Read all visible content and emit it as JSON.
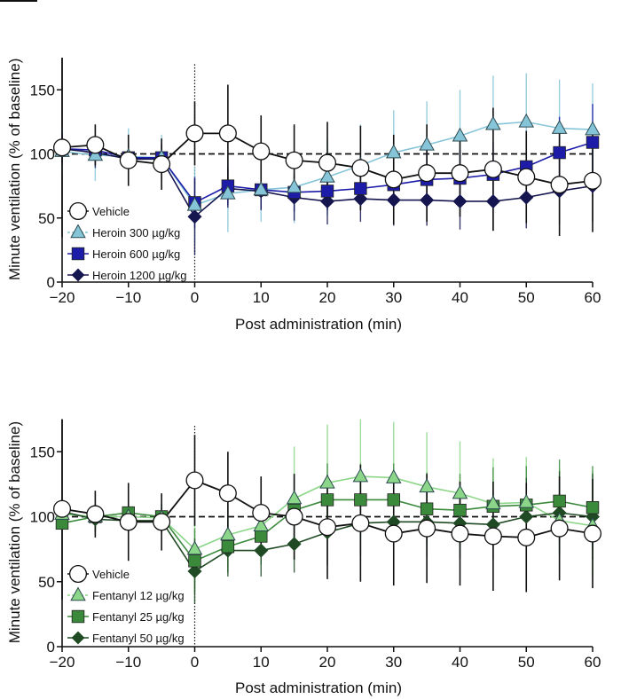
{
  "chart_data": [
    {
      "type": "line",
      "title": "",
      "xlabel": "Post administration (min)",
      "ylabel": "Minute ventilation (% of baseline)",
      "xlim": [
        -20,
        60
      ],
      "ylim": [
        0,
        175
      ],
      "xticks": [
        -20,
        -10,
        0,
        10,
        20,
        30,
        40,
        50,
        60
      ],
      "xtick_labels": [
        "−20",
        "−10",
        "0",
        "10",
        "20",
        "30",
        "40",
        "50",
        "60"
      ],
      "yticks": [
        0,
        50,
        100,
        150
      ],
      "ytick_labels": [
        "0",
        "50",
        "100",
        "150"
      ],
      "reference_line_y": 100,
      "dosing_line_x": 0,
      "grid": false,
      "legend_position": "bottom-left",
      "x": [
        -20,
        -15,
        -10,
        -5,
        0,
        5,
        10,
        15,
        20,
        25,
        30,
        35,
        40,
        45,
        50,
        55,
        60
      ],
      "series": [
        {
          "name": "Vehicle",
          "marker": "circle",
          "color": "#111111",
          "fill": "#ffffff",
          "values": [
            105,
            107,
            95,
            92,
            116,
            116,
            102,
            95,
            93,
            89,
            80,
            85,
            85,
            88,
            82,
            76,
            79
          ],
          "error": [
            70,
            16,
            20,
            20,
            25,
            38,
            28,
            28,
            32,
            33,
            35,
            38,
            34,
            48,
            36,
            40,
            40
          ]
        },
        {
          "name": "Heroin 300 µg/kg",
          "marker": "triangle",
          "color": "#86c5d8",
          "fill": "#86c5d8",
          "values": [
            102,
            99,
            98,
            97,
            60,
            69,
            72,
            74,
            82,
            91,
            101,
            107,
            114,
            123,
            125,
            120,
            119
          ],
          "error": [
            18,
            20,
            22,
            18,
            30,
            30,
            25,
            28,
            30,
            32,
            33,
            34,
            36,
            38,
            38,
            38,
            36
          ]
        },
        {
          "name": "Heroin 600 µg/kg",
          "marker": "square",
          "color": "#1c1ca8",
          "fill": "#1c1ca8",
          "values": [
            104,
            103,
            97,
            97,
            62,
            75,
            72,
            70,
            71,
            73,
            76,
            80,
            81,
            84,
            90,
            101,
            109
          ],
          "error": [
            10,
            10,
            10,
            10,
            20,
            15,
            15,
            15,
            15,
            15,
            20,
            22,
            22,
            25,
            25,
            28,
            30
          ]
        },
        {
          "name": "Heroin 1200 µg/kg",
          "marker": "diamond",
          "color": "#15154f",
          "fill": "#15154f",
          "values": [
            104,
            101,
            96,
            96,
            51,
            73,
            71,
            66,
            63,
            65,
            64,
            64,
            63,
            63,
            66,
            71,
            75
          ],
          "error": [
            12,
            12,
            12,
            12,
            30,
            15,
            15,
            18,
            18,
            18,
            20,
            20,
            22,
            22,
            24,
            26,
            28
          ]
        }
      ]
    },
    {
      "type": "line",
      "title": "",
      "xlabel": "Post administration (min)",
      "ylabel": "Minute ventilation (% of baseline)",
      "xlim": [
        -20,
        60
      ],
      "ylim": [
        0,
        175
      ],
      "xticks": [
        -20,
        -10,
        0,
        10,
        20,
        30,
        40,
        50,
        60
      ],
      "xtick_labels": [
        "−20",
        "−10",
        "0",
        "10",
        "20",
        "30",
        "40",
        "50",
        "60"
      ],
      "yticks": [
        0,
        50,
        100,
        150
      ],
      "ytick_labels": [
        "0",
        "50",
        "100",
        "150"
      ],
      "reference_line_y": 100,
      "dosing_line_x": 0,
      "grid": false,
      "legend_position": "bottom-left",
      "x": [
        -20,
        -15,
        -10,
        -5,
        0,
        5,
        10,
        15,
        20,
        25,
        30,
        35,
        40,
        45,
        50,
        55,
        60
      ],
      "series": [
        {
          "name": "Vehicle",
          "marker": "circle",
          "color": "#111111",
          "fill": "#ffffff",
          "values": [
            106,
            102,
            96,
            96,
            128,
            118,
            103,
            100,
            92,
            95,
            87,
            91,
            87,
            85,
            84,
            91,
            87
          ],
          "error": [
            70,
            18,
            30,
            22,
            35,
            32,
            28,
            33,
            40,
            45,
            40,
            42,
            40,
            42,
            42,
            40,
            42
          ]
        },
        {
          "name": "Fentanyl 12 µg/kg",
          "marker": "triangle",
          "color": "#8cd689",
          "fill": "#8cd689",
          "values": [
            102,
            100,
            100,
            99,
            75,
            86,
            93,
            114,
            126,
            131,
            130,
            123,
            118,
            110,
            111,
            97,
            93
          ],
          "error": [
            10,
            10,
            10,
            10,
            30,
            25,
            30,
            40,
            45,
            45,
            43,
            42,
            40,
            35,
            35,
            40,
            42
          ]
        },
        {
          "name": "Fentanyl 25 µg/kg",
          "marker": "square",
          "color": "#3b8a3c",
          "fill": "#3b8a3c",
          "values": [
            95,
            100,
            103,
            100,
            66,
            77,
            85,
            105,
            113,
            113,
            113,
            106,
            105,
            108,
            109,
            112,
            107
          ],
          "error": [
            10,
            10,
            10,
            10,
            25,
            20,
            22,
            25,
            28,
            28,
            28,
            28,
            28,
            30,
            30,
            32,
            32
          ]
        },
        {
          "name": "Fentanyl 50 µg/kg",
          "marker": "diamond",
          "color": "#1f4a24",
          "fill": "#1f4a24",
          "values": [
            104,
            98,
            97,
            97,
            58,
            74,
            74,
            79,
            88,
            95,
            96,
            96,
            95,
            94,
            100,
            103,
            100
          ],
          "error": [
            10,
            10,
            10,
            10,
            25,
            20,
            20,
            22,
            25,
            25,
            25,
            27,
            27,
            27,
            30,
            32,
            33
          ]
        }
      ]
    }
  ]
}
